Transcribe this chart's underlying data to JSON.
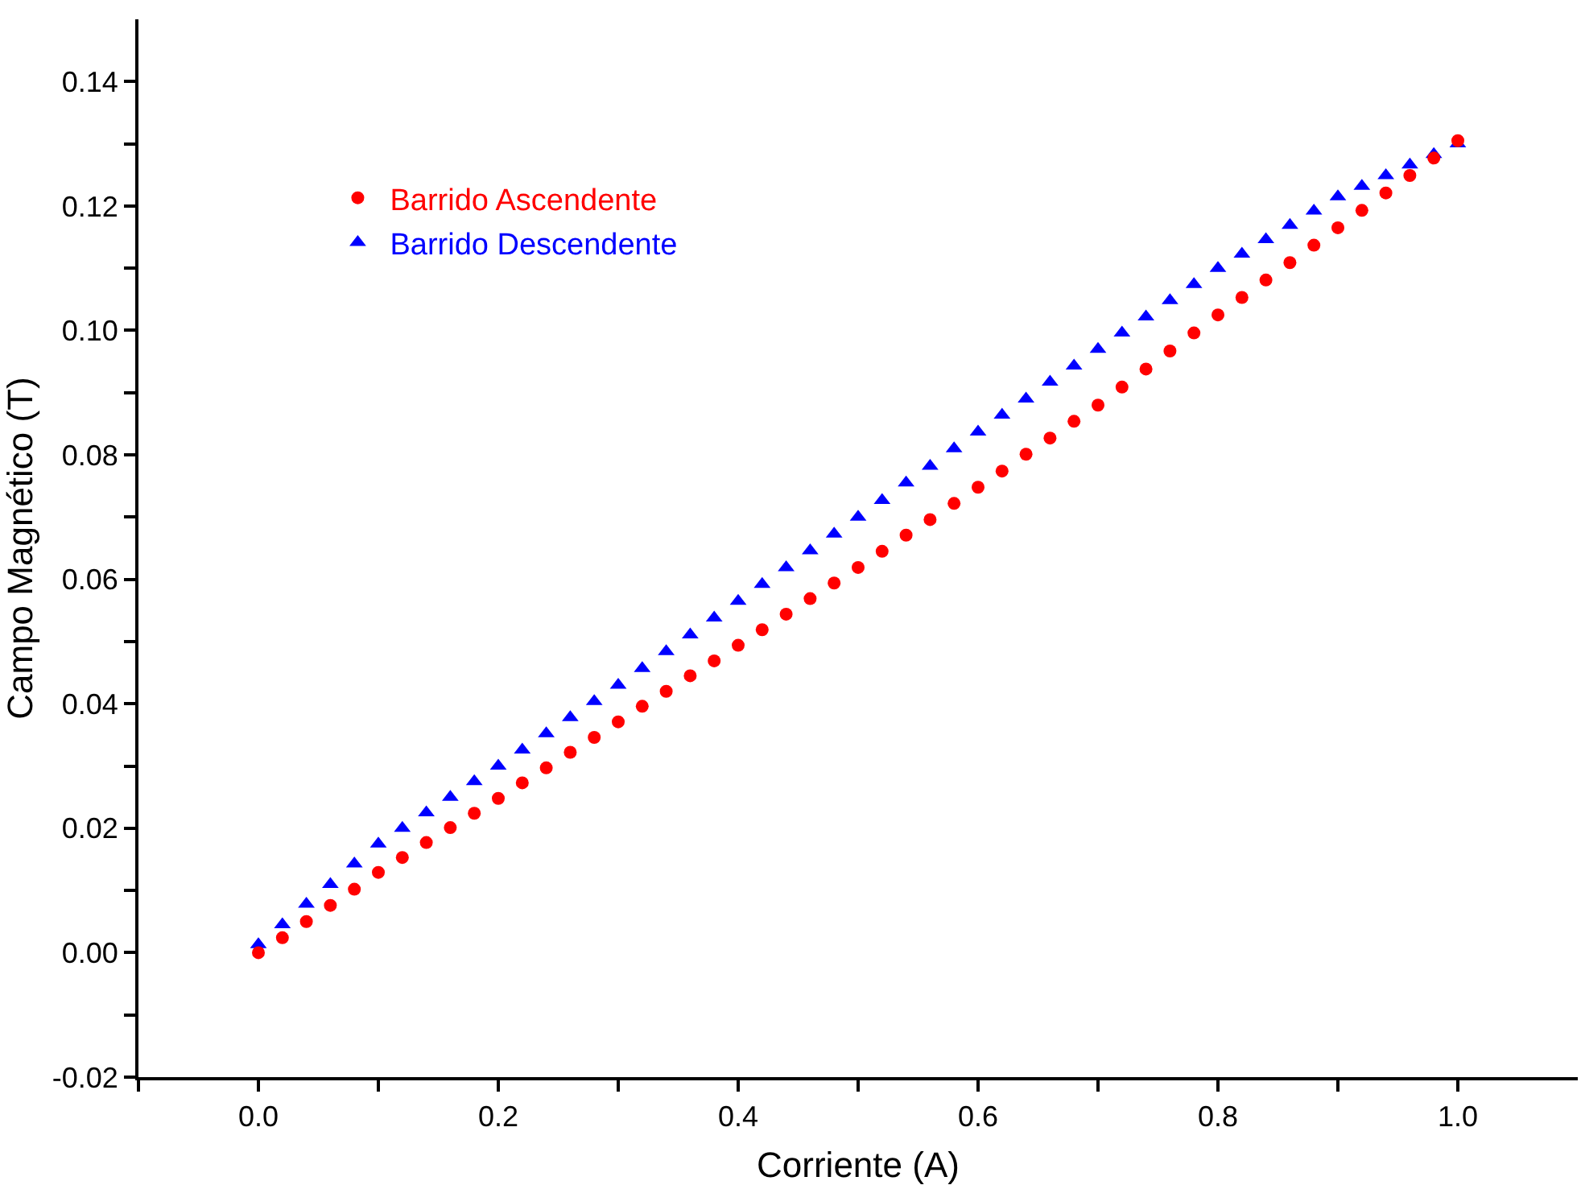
{
  "chart_data": {
    "type": "scatter",
    "xlabel": "Corriente (A)",
    "ylabel": "Campo Magnético (T)",
    "x": [
      0,
      0.02,
      0.04,
      0.06,
      0.08,
      0.1,
      0.12,
      0.14,
      0.16,
      0.18,
      0.2,
      0.22,
      0.24,
      0.26,
      0.28,
      0.3,
      0.32,
      0.34,
      0.36,
      0.38,
      0.4,
      0.42,
      0.44,
      0.46,
      0.48,
      0.5,
      0.52,
      0.54,
      0.56,
      0.58,
      0.6,
      0.62,
      0.64,
      0.66,
      0.68,
      0.7,
      0.72,
      0.74,
      0.76,
      0.78,
      0.8,
      0.82,
      0.84,
      0.86,
      0.88,
      0.9,
      0.92,
      0.94,
      0.96,
      0.98,
      1.0
    ],
    "series": [
      {
        "name": "Barrido Ascendente",
        "color": "#ff0000",
        "marker": "circle",
        "values": [
          0,
          0.0024,
          0.005,
          0.0076,
          0.0102,
          0.0129,
          0.0153,
          0.0177,
          0.0201,
          0.0224,
          0.0248,
          0.0273,
          0.0297,
          0.0322,
          0.0346,
          0.0371,
          0.0396,
          0.042,
          0.0445,
          0.0469,
          0.0494,
          0.0519,
          0.0544,
          0.0569,
          0.0594,
          0.0619,
          0.0645,
          0.0671,
          0.0696,
          0.0722,
          0.0748,
          0.0774,
          0.0801,
          0.0827,
          0.0854,
          0.088,
          0.0909,
          0.0938,
          0.0967,
          0.0996,
          0.1025,
          0.1053,
          0.1081,
          0.1109,
          0.1137,
          0.1165,
          0.1193,
          0.1221,
          0.1249,
          0.1277,
          0.1305
        ]
      },
      {
        "name": "Barrido Descendente",
        "color": "#0000ff",
        "marker": "triangle",
        "values": [
          0.0013,
          0.0045,
          0.0078,
          0.011,
          0.0143,
          0.0175,
          0.02,
          0.0225,
          0.025,
          0.0275,
          0.03,
          0.0326,
          0.0352,
          0.0378,
          0.0404,
          0.043,
          0.0457,
          0.0484,
          0.0511,
          0.0538,
          0.0565,
          0.0592,
          0.0619,
          0.0646,
          0.0673,
          0.07,
          0.0727,
          0.0755,
          0.0782,
          0.081,
          0.0837,
          0.0864,
          0.089,
          0.0917,
          0.0943,
          0.097,
          0.0996,
          0.1022,
          0.1048,
          0.1074,
          0.11,
          0.1123,
          0.1146,
          0.1169,
          0.1192,
          0.1215,
          0.1232,
          0.1249,
          0.1266,
          0.1283,
          0.13
        ]
      }
    ],
    "xlim": [
      -0.1,
      1.1
    ],
    "ylim": [
      -0.02,
      0.15
    ],
    "xticks": [
      {
        "value": -0.1,
        "label": null
      },
      "0.0",
      {
        "value": 0.1,
        "label": null
      },
      0.2,
      {
        "value": 0.3,
        "label": null
      },
      0.4,
      {
        "value": 0.5,
        "label": null
      },
      0.6,
      {
        "value": 0.7,
        "label": null
      },
      0.8,
      {
        "value": 0.9,
        "label": null
      },
      "1.0"
    ],
    "yticks": [
      -0.02,
      {
        "value": -0.01,
        "label": null
      },
      "0.00",
      {
        "value": 0.01,
        "label": null
      },
      0.02,
      {
        "value": 0.03,
        "label": null
      },
      0.04,
      {
        "value": 0.05,
        "label": null
      },
      0.06,
      {
        "value": 0.07,
        "label": null
      },
      0.08,
      {
        "value": 0.09,
        "label": null
      },
      "0.10",
      {
        "value": 0.11,
        "label": null
      },
      0.12,
      {
        "value": 0.13,
        "label": null
      },
      0.14
    ],
    "legend": "top left"
  }
}
